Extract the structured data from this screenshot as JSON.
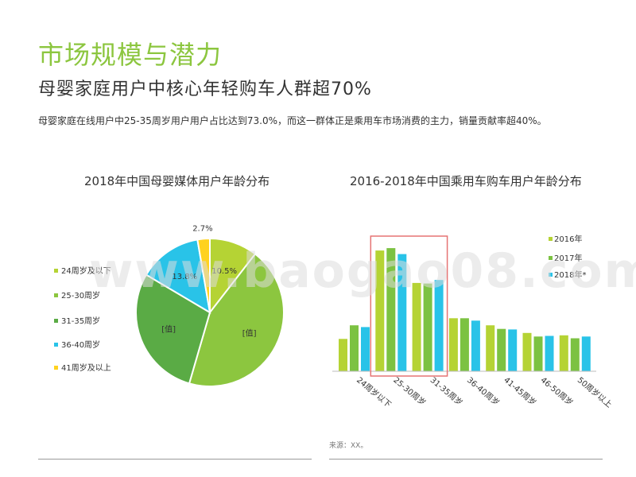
{
  "header": {
    "title": "市场规模与潜力",
    "subtitle": "母婴家庭用户中核心年轻购车人群超70%",
    "description": "母婴家庭在线用户中25-35周岁用户用户占比达到73.0%，而这一群体正是乘用车市场消费的主力，销量贡献率超40%。"
  },
  "watermark": "www.baogao08.com",
  "source": "来源：XX。",
  "chart_data": [
    {
      "type": "pie",
      "title": "2018年中国母婴媒体用户年龄分布",
      "slices": [
        {
          "label": "24周岁及以下",
          "value": 10.5,
          "display": "10.5%",
          "color": "#b5d334"
        },
        {
          "label": "25-30周岁",
          "value": 44.0,
          "display": "[值]",
          "color": "#8cc63f"
        },
        {
          "label": "31-35周岁",
          "value": 29.0,
          "display": "[值]",
          "color": "#5aab45"
        },
        {
          "label": "36-40周岁",
          "value": 13.8,
          "display": "13.8%",
          "color": "#29c3e8"
        },
        {
          "label": "41周岁及以上",
          "value": 2.7,
          "display": "2.7%",
          "color": "#ffd21f"
        }
      ],
      "legend_position": "left"
    },
    {
      "type": "bar",
      "title": "2016-2018年中国乘用车购车用户年龄分布",
      "categories": [
        "24周岁以下",
        "25-30周岁",
        "31-35周岁",
        "36-40周岁",
        "41-45周岁",
        "46-50周岁",
        "50周岁以上"
      ],
      "series": [
        {
          "name": "2016年",
          "color": "#b5d334",
          "values": [
            5.5,
            20.5,
            15.0,
            9.0,
            7.8,
            6.5,
            6.1
          ]
        },
        {
          "name": "2017年",
          "color": "#7cc242",
          "values": [
            7.8,
            20.9,
            14.9,
            9.0,
            7.2,
            5.9,
            5.6
          ]
        },
        {
          "name": "2018年*",
          "color": "#29c3e8",
          "values": [
            7.5,
            19.9,
            15.5,
            8.6,
            7.1,
            6.0,
            5.9
          ]
        }
      ],
      "ylim": [
        0,
        22
      ],
      "highlight": [
        "25-30周岁",
        "31-35周岁"
      ],
      "highlight_color": "#e57373",
      "legend_position": "top-right",
      "grid": false
    }
  ]
}
